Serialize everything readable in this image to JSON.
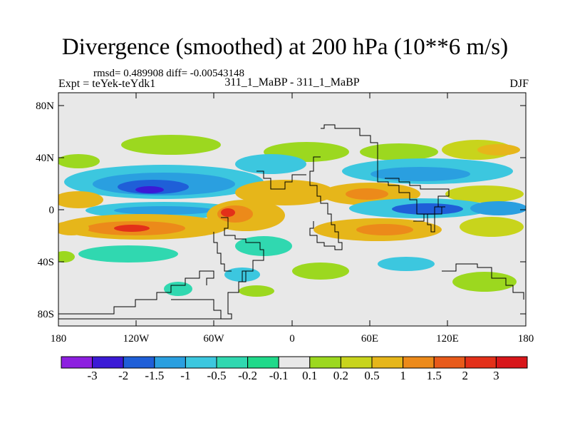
{
  "header": {
    "title": "Divergence (smoothed) at 200 hPa (10**6 m/s)",
    "stats": "rmsd= 0.489908 diff= -0.00543148",
    "experiment": "Expt = teYek-teYdk1",
    "comparison": "311_1_MaBP - 311_1_MaBP",
    "season": "DJF"
  },
  "map": {
    "lat_ticks": [
      "80N",
      "40N",
      "0",
      "40S",
      "80S"
    ],
    "lon_ticks": [
      "180",
      "120W",
      "60W",
      "0",
      "60E",
      "120E",
      "180"
    ]
  },
  "colorbar": {
    "labels": [
      "-3",
      "-2",
      "-1.5",
      "-1",
      "-0.5",
      "-0.2",
      "-0.1",
      "0.1",
      "0.2",
      "0.5",
      "1",
      "1.5",
      "2",
      "3"
    ],
    "colors": [
      "#8d1fe0",
      "#3b1ad6",
      "#1f5fd8",
      "#2a9fe0",
      "#3cc7df",
      "#30d8b0",
      "#20d98a",
      "#e8e8e8",
      "#9cd81f",
      "#c8d41c",
      "#e6b61a",
      "#ec8a1a",
      "#e85a1a",
      "#e33019",
      "#d8161a"
    ]
  },
  "colors": {
    "background": "#ffffff",
    "map_fill": "#e8e8e8",
    "outline": "#000000"
  }
}
